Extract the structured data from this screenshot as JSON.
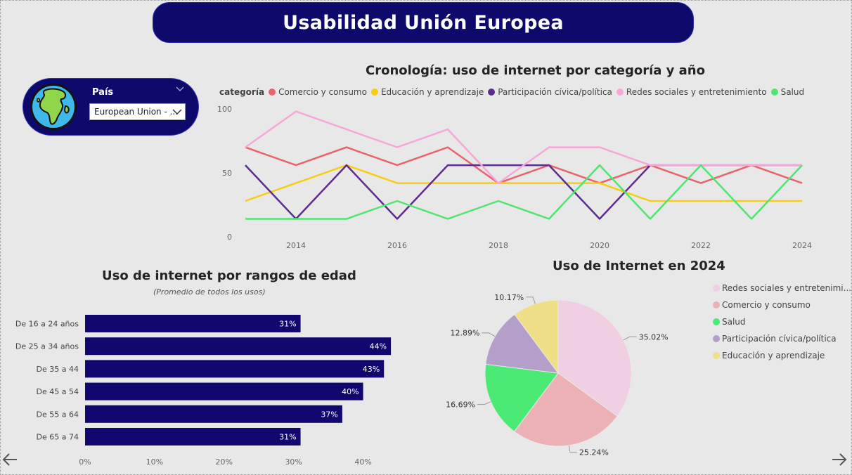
{
  "header": {
    "title": "Usabilidad Unión Europea"
  },
  "slicer": {
    "label": "País",
    "selected_value": "European Union - ..."
  },
  "line_chart": {
    "title": "Cronología: uso de internet por categoría y año",
    "legend_title": "categoría"
  },
  "bar_chart": {
    "title": "Uso de internet por rangos de edad",
    "subtitle": "(Promedio de todos los usos)"
  },
  "pie_chart": {
    "title": "Uso de Internet en 2024"
  },
  "chart_data": [
    {
      "type": "line",
      "title": "Cronología: uso de internet por categoría y año",
      "legend_title": "categoría",
      "x": [
        2013,
        2014,
        2015,
        2016,
        2017,
        2018,
        2019,
        2020,
        2021,
        2022,
        2023,
        2024
      ],
      "x_ticks": [
        "2014",
        "2016",
        "2018",
        "2020",
        "2022",
        "2024"
      ],
      "y_ticks": [
        "0",
        "50",
        "100"
      ],
      "ylim": [
        0,
        100
      ],
      "grid": false,
      "legend_position": "top",
      "series": [
        {
          "name": "Comercio y consumo",
          "color": "#e8636b",
          "values": [
            70,
            56,
            70,
            56,
            70,
            42,
            56,
            42,
            56,
            42,
            56,
            42
          ]
        },
        {
          "name": "Educación y aprendizaje",
          "color": "#f6cd13",
          "values": [
            28,
            42,
            56,
            42,
            42,
            42,
            42,
            42,
            28,
            28,
            28,
            28
          ]
        },
        {
          "name": "Participación cívica/política",
          "color": "#5b2d8e",
          "values": [
            56,
            14,
            56,
            14,
            56,
            56,
            56,
            14,
            56,
            56,
            56,
            56
          ]
        },
        {
          "name": "Redes sociales y entretenimiento",
          "color": "#f5a8d8",
          "values": [
            70,
            98,
            84,
            70,
            84,
            42,
            70,
            70,
            56,
            56,
            56,
            56
          ]
        },
        {
          "name": "Salud",
          "color": "#4ee670",
          "values": [
            14,
            14,
            14,
            28,
            14,
            28,
            14,
            56,
            14,
            56,
            14,
            56
          ]
        }
      ]
    },
    {
      "type": "bar",
      "orientation": "horizontal",
      "title": "Uso de internet por rangos de edad",
      "subtitle": "(Promedio de todos los usos)",
      "categories": [
        "De 16 a 24 años",
        "De 25 a 34 años",
        "De 35 a 44",
        "De 45 a 54",
        "De 55 a 64",
        "De 65 a 74"
      ],
      "values": [
        31,
        44,
        43,
        40,
        37,
        31
      ],
      "data_labels": [
        "31%",
        "44%",
        "43%",
        "40%",
        "37%",
        "31%"
      ],
      "x_ticks": [
        "0%",
        "10%",
        "20%",
        "30%",
        "40%"
      ],
      "xlim": [
        0,
        45
      ],
      "color": "#12076e"
    },
    {
      "type": "pie",
      "title": "Uso de Internet en 2024",
      "legend_position": "right",
      "slices": [
        {
          "name": "Redes sociales y entretenimi...",
          "value": 35.02,
          "label": "35.02%",
          "color": "#f0cfe3"
        },
        {
          "name": "Comercio y consumo",
          "value": 25.24,
          "label": "25.24%",
          "color": "#ecb1b4"
        },
        {
          "name": "Salud",
          "value": 16.69,
          "label": "16.69%",
          "color": "#4aea75"
        },
        {
          "name": "Participación cívica/política",
          "value": 12.89,
          "label": "12.89%",
          "color": "#b39fc9"
        },
        {
          "name": "Educación y aprendizaje",
          "value": 10.17,
          "label": "10.17%",
          "color": "#efdf86"
        }
      ]
    }
  ]
}
